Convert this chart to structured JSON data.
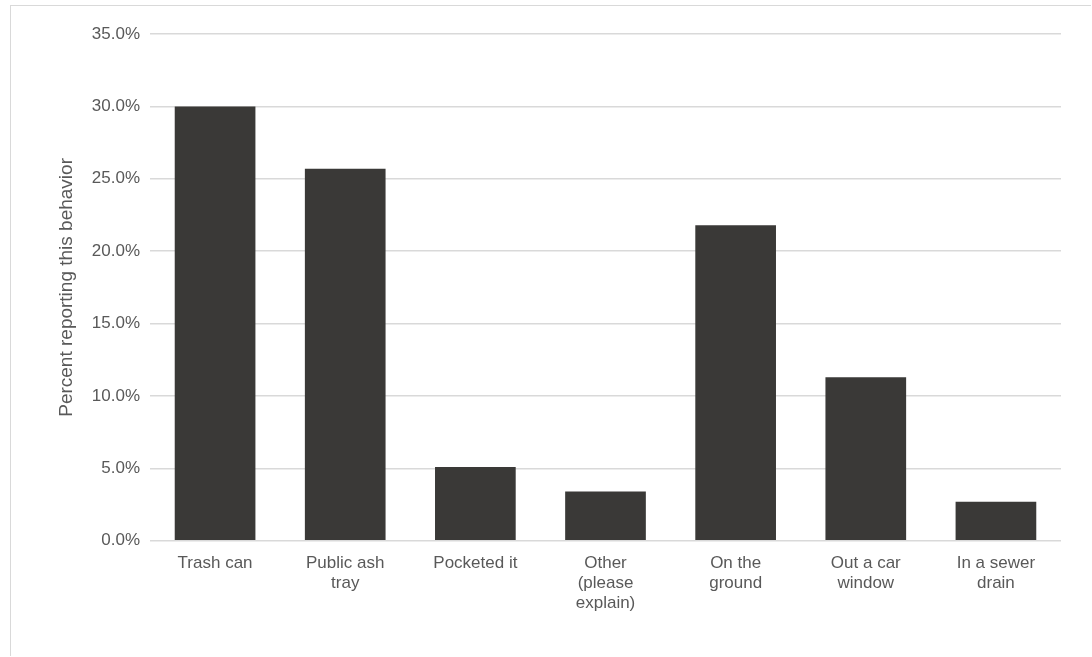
{
  "chart_data": {
    "type": "bar",
    "ylabel": "Percent reporting this behavior",
    "categories": [
      "Trash can",
      "Public ash tray",
      "Pocketed it",
      "Other (please explain)",
      "On the ground",
      "Out a car window",
      "In a sewer drain"
    ],
    "values": [
      30.0,
      25.7,
      5.1,
      3.4,
      21.8,
      11.3,
      2.7
    ],
    "color": "#3a3937",
    "ylim": [
      0,
      35
    ],
    "yticks": [
      {
        "value": 0,
        "label": "0.0%"
      },
      {
        "value": 5,
        "label": "5.0%"
      },
      {
        "value": 10,
        "label": "10.0%"
      },
      {
        "value": 15,
        "label": "15.0%"
      },
      {
        "value": 20,
        "label": "20.0%"
      },
      {
        "value": 25,
        "label": "25.0%"
      },
      {
        "value": 30,
        "label": "30.0%"
      },
      {
        "value": 35,
        "label": "35.0%"
      }
    ],
    "grid": "y"
  }
}
